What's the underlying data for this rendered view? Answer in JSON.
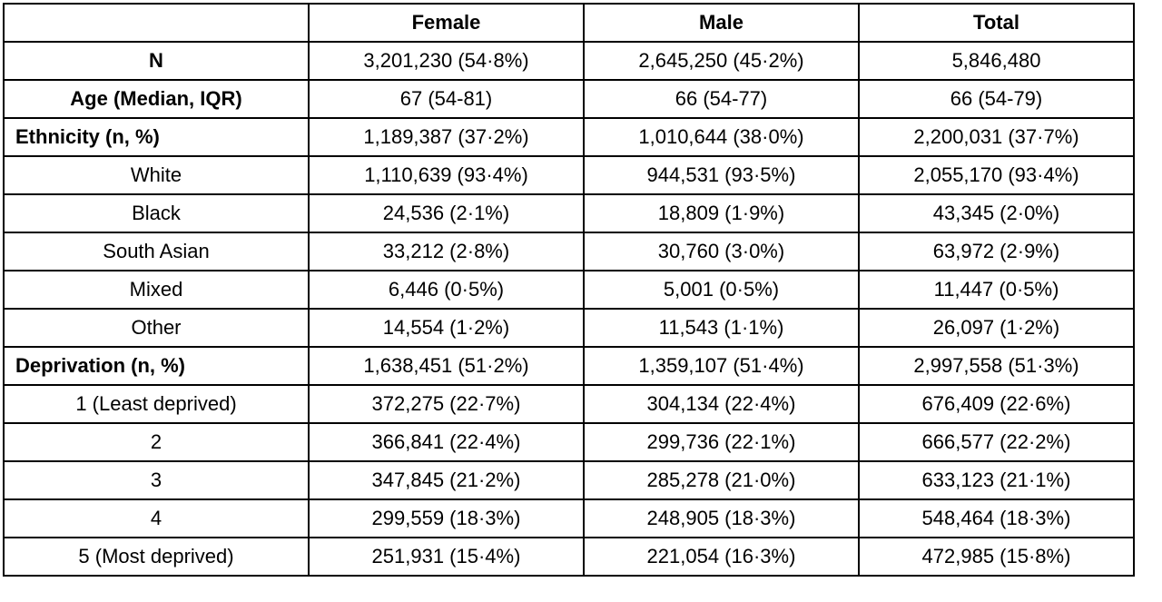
{
  "table": {
    "headers": [
      "",
      "Female",
      "Male",
      "Total"
    ],
    "rows": [
      {
        "label": "N",
        "style": "bold",
        "female": "3,201,230 (54·8%)",
        "male": "2,645,250 (45·2%)",
        "total": "5,846,480"
      },
      {
        "label": "Age (Median, IQR)",
        "style": "bold",
        "female": "67 (54-81)",
        "male": "66 (54-77)",
        "total": "66 (54-79)"
      },
      {
        "label": "Ethnicity (n, %)",
        "style": "section",
        "female": "1,189,387 (37·2%)",
        "male": "1,010,644 (38·0%)",
        "total": "2,200,031 (37·7%)"
      },
      {
        "label": "White",
        "style": "sub",
        "female": "1,110,639 (93·4%)",
        "male": "944,531 (93·5%)",
        "total": "2,055,170 (93·4%)"
      },
      {
        "label": "Black",
        "style": "sub",
        "female": "24,536 (2·1%)",
        "male": "18,809 (1·9%)",
        "total": "43,345 (2·0%)"
      },
      {
        "label": "South Asian",
        "style": "sub",
        "female": "33,212 (2·8%)",
        "male": "30,760 (3·0%)",
        "total": "63,972 (2·9%)"
      },
      {
        "label": "Mixed",
        "style": "sub",
        "female": "6,446 (0·5%)",
        "male": "5,001 (0·5%)",
        "total": "11,447 (0·5%)"
      },
      {
        "label": "Other",
        "style": "sub",
        "female": "14,554 (1·2%)",
        "male": "11,543 (1·1%)",
        "total": "26,097 (1·2%)"
      },
      {
        "label": "Deprivation (n, %)",
        "style": "section",
        "female": "1,638,451 (51·2%)",
        "male": "1,359,107 (51·4%)",
        "total": "2,997,558 (51·3%)"
      },
      {
        "label": "1 (Least deprived)",
        "style": "sub",
        "female": "372,275 (22·7%)",
        "male": "304,134 (22·4%)",
        "total": "676,409 (22·6%)"
      },
      {
        "label": "2",
        "style": "sub",
        "female": "366,841 (22·4%)",
        "male": "299,736 (22·1%)",
        "total": "666,577 (22·2%)"
      },
      {
        "label": "3",
        "style": "sub",
        "female": "347,845 (21·2%)",
        "male": "285,278 (21·0%)",
        "total": "633,123 (21·1%)"
      },
      {
        "label": "4",
        "style": "sub",
        "female": "299,559 (18·3%)",
        "male": "248,905 (18·3%)",
        "total": "548,464 (18·3%)"
      },
      {
        "label": "5 (Most deprived)",
        "style": "sub",
        "female": "251,931 (15·4%)",
        "male": "221,054 (16·3%)",
        "total": "472,985 (15·8%)"
      }
    ]
  }
}
